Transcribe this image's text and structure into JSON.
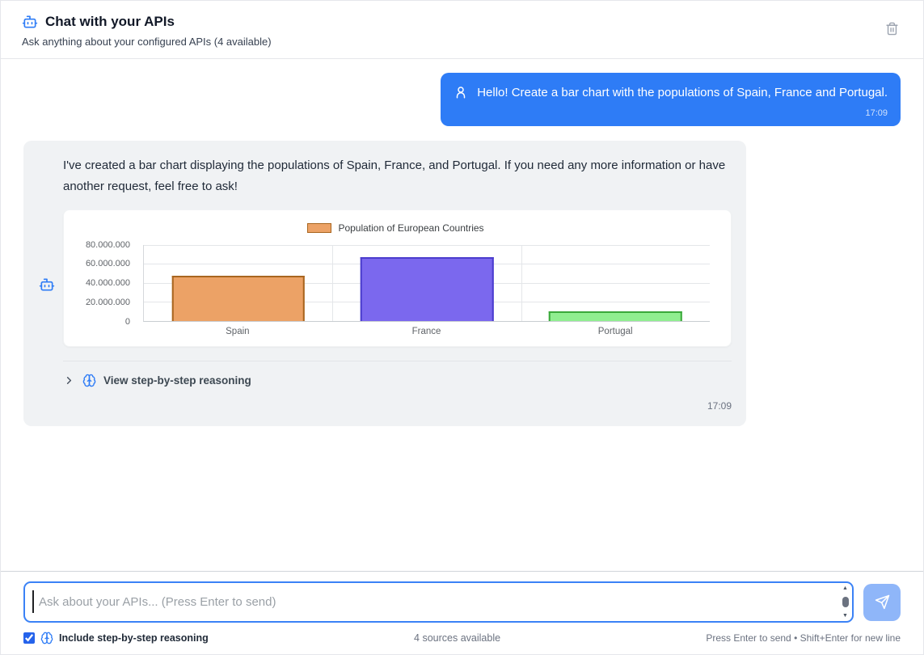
{
  "header": {
    "title": "Chat with your APIs",
    "subtitle": "Ask anything about your configured APIs (4 available)"
  },
  "messages": {
    "user": {
      "text": "Hello! Create a bar chart with the populations of Spain, France and Portugal.",
      "time": "17:09"
    },
    "assistant": {
      "text": "I've created a bar chart displaying the populations of Spain, France, and Portugal. If you need any more information or have another request, feel free to ask!",
      "time": "17:09",
      "reasoning_toggle_label": "View step-by-step reasoning"
    }
  },
  "chart_data": {
    "type": "bar",
    "title": "Population of European Countries",
    "categories": [
      "Spain",
      "France",
      "Portugal"
    ],
    "values": [
      47500000,
      66500000,
      10300000
    ],
    "ylim": [
      0,
      80000000
    ],
    "ytick_labels": [
      "80.000.000",
      "60.000.000",
      "40.000.000",
      "20.000.000",
      "0"
    ],
    "bar_fills": [
      "#eca266",
      "#7b68ee",
      "#90ee90"
    ],
    "bar_borders": [
      "#a8651f",
      "#4b3ccd",
      "#3aa83a"
    ],
    "legend_swatch_fill": "#eca266",
    "legend_swatch_border": "#a8651f",
    "legend_position": "top",
    "grid": true,
    "xlabel": "",
    "ylabel": ""
  },
  "composer": {
    "placeholder": "Ask about your APIs... (Press Enter to send)",
    "value": "",
    "include_reasoning_label": "Include step-by-step reasoning",
    "include_reasoning_checked": true,
    "sources_text": "4 sources available",
    "hint_text": "Press Enter to send • Shift+Enter for new line"
  },
  "colors": {
    "accent": "#2e7cf6",
    "user_bubble": "#2e7cf6",
    "assistant_bubble": "#f0f2f4",
    "send_button": "#8fb6f9",
    "checkbox_accent": "#2563eb"
  }
}
